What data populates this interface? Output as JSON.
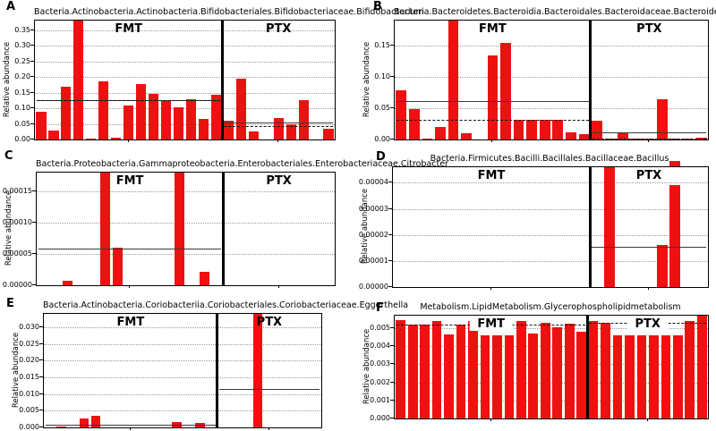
{
  "figure": {
    "background": "#ffffff",
    "bar_color": "#ee1111",
    "grid_color": "#9a9a9a",
    "solid_line_color": "#3a3a3a",
    "dashed_line_color": "#111111",
    "divider_color": "#000000"
  },
  "chart_data": [
    {
      "type": "bar",
      "letter": "A",
      "title": "Bacteria.Actinobacteria.Actinobacteria.Bifidobacteriales.Bifidobacteriaceae.Bifidobacterium",
      "ylabel": "Relative abundance",
      "ylim": [
        0,
        0.38
      ],
      "grid": true,
      "legend_position": "none",
      "ytick_values": [
        0.0,
        0.05,
        0.1,
        0.15,
        0.2,
        0.25,
        0.3,
        0.35
      ],
      "ytick_labels": [
        "0.00",
        "0.05",
        "0.10",
        "0.15",
        "0.20",
        "0.25",
        "0.30",
        "0.35"
      ],
      "groups": [
        {
          "label": "FMT",
          "values": [
            0.089,
            0.029,
            0.17,
            0.38,
            0.004,
            0.186,
            0.005,
            0.108,
            0.178,
            0.146,
            0.125,
            0.102,
            0.128,
            0.066,
            0.144
          ],
          "solid_line": 0.125,
          "dashed_line": 0.125
        },
        {
          "label": "PTX",
          "values": [
            0.06,
            0.195,
            0.025,
            0,
            0.068,
            0.048,
            0.125,
            0,
            0.033
          ],
          "solid_line": 0.055,
          "dashed_line": 0.042
        }
      ]
    },
    {
      "type": "bar",
      "letter": "B",
      "title": "Bacteria.Bacteroidetes.Bacteroidia.Bacteroidales.Bacteroidaceae.Bacteroides",
      "ylabel": "Relative abundance",
      "ylim": [
        0,
        0.19
      ],
      "grid": true,
      "legend_position": "none",
      "ytick_values": [
        0.0,
        0.05,
        0.1,
        0.15
      ],
      "ytick_labels": [
        "0.00",
        "0.05",
        "0.10",
        "0.15"
      ],
      "groups": [
        {
          "label": "FMT",
          "values": [
            0.078,
            0.048,
            0.002,
            0.02,
            0.19,
            0.01,
            0,
            0.135,
            0.155,
            0.031,
            0.032,
            0.032,
            0.031,
            0.011,
            0.008
          ],
          "solid_line": 0.061,
          "dashed_line": 0.032
        },
        {
          "label": "PTX",
          "values": [
            0.03,
            0.002,
            0.011,
            0.001,
            0.001,
            0.064,
            0.001,
            0.001,
            0.003
          ],
          "solid_line": 0.011,
          "dashed_line": 0.002
        }
      ]
    },
    {
      "type": "bar",
      "letter": "C",
      "title": "Bacteria.Proteobacteria.Gammaproteobacteria.Enterobacteriales.Enterobacteriaceae.Citrobacter",
      "ylabel": "Relative abundance",
      "ylim": [
        0,
        0.00018
      ],
      "grid": true,
      "legend_position": "none",
      "ytick_values": [
        0.0,
        5e-05,
        0.0001,
        0.00015
      ],
      "ytick_labels": [
        "0.00000",
        "0.00005",
        "0.00010",
        "0.00015"
      ],
      "groups": [
        {
          "label": "FMT",
          "values": [
            0,
            0,
            7e-06,
            0,
            0,
            0.000185,
            6e-05,
            0,
            0,
            0,
            0,
            0.000185,
            0,
            2.2e-05,
            0
          ],
          "solid_line": 5.9e-05,
          "dashed_line": null
        },
        {
          "label": "PTX",
          "values": [
            0,
            0,
            0,
            0,
            0,
            0,
            0,
            0,
            0
          ],
          "solid_line": null,
          "dashed_line": null
        }
      ]
    },
    {
      "type": "bar",
      "letter": "D",
      "title": "Bacteria.Firmicutes.Bacilli.Bacillales.Bacillaceae.Bacillus",
      "ylabel": "Relative abundance",
      "ylim": [
        0,
        4.6e-05
      ],
      "grid": true,
      "legend_position": "none",
      "ytick_values": [
        0.0,
        1e-05,
        2e-05,
        3e-05,
        4e-05
      ],
      "ytick_labels": [
        "0.00000",
        "0.00001",
        "0.00002",
        "0.00003",
        "0.00004"
      ],
      "artifact_overflow": {
        "group": 1,
        "slot": 6
      },
      "groups": [
        {
          "label": "FMT",
          "values": [
            0,
            0,
            0,
            0,
            0,
            0,
            0,
            0,
            0,
            0,
            0,
            0,
            0,
            0,
            0
          ],
          "solid_line": null,
          "dashed_line": null
        },
        {
          "label": "PTX",
          "values": [
            0,
            4.7e-05,
            0,
            0,
            0,
            1.6e-05,
            3.9e-05,
            0,
            0
          ],
          "solid_line": 1.55e-05,
          "dashed_line": null
        }
      ]
    },
    {
      "type": "bar",
      "letter": "E",
      "title": "Bacteria.Actinobacteria.Coriobacteriia.Coriobacteriales.Coriobacteriaceae.Eggerthella",
      "ylabel": "Relative abundance",
      "ylim": [
        0,
        0.034
      ],
      "grid": true,
      "legend_position": "none",
      "ytick_values": [
        0.0,
        0.005,
        0.01,
        0.015,
        0.02,
        0.025,
        0.03
      ],
      "ytick_labels": [
        "0.000",
        "0.005",
        "0.010",
        "0.015",
        "0.020",
        "0.025",
        "0.030"
      ],
      "groups": [
        {
          "label": "FMT",
          "values": [
            0,
            0.0003,
            0,
            0.0028,
            0.0035,
            0,
            0,
            0,
            0,
            0,
            0,
            0.0016,
            0,
            0.0014,
            0
          ],
          "solid_line": 0.0007,
          "dashed_line": null
        },
        {
          "label": "PTX",
          "values": [
            0,
            0,
            0,
            0.035,
            0,
            0,
            0,
            0,
            0
          ],
          "solid_line": 0.0115,
          "dashed_line": null
        }
      ]
    },
    {
      "type": "bar",
      "letter": "F",
      "title": "Metabolism.LipidMetabolism.Glycerophospholipidmetabolism",
      "ylabel": "Relative abundance",
      "ylim": [
        0,
        0.0057
      ],
      "grid": true,
      "legend_position": "none",
      "ytick_values": [
        0.0,
        0.001,
        0.002,
        0.003,
        0.004,
        0.005
      ],
      "ytick_labels": [
        "0.000",
        "0.001",
        "0.002",
        "0.003",
        "0.004",
        "0.005"
      ],
      "groups": [
        {
          "label": "FMT",
          "values": [
            0.00545,
            0.0052,
            0.0052,
            0.0054,
            0.00465,
            0.0052,
            0.0054,
            0.0046,
            0.0046,
            0.0046,
            0.0054,
            0.0047,
            0.0053,
            0.00505,
            0.00525,
            0.0048
          ],
          "solid_line": null,
          "dashed_line": 0.0052
        },
        {
          "label": "PTX",
          "values": [
            0.0054,
            0.0053,
            0.0046,
            0.0046,
            0.0046,
            0.0046,
            0.0046,
            0.0046,
            0.0054,
            0.0057
          ],
          "solid_line": null,
          "dashed_line": 0.0053
        }
      ]
    }
  ]
}
